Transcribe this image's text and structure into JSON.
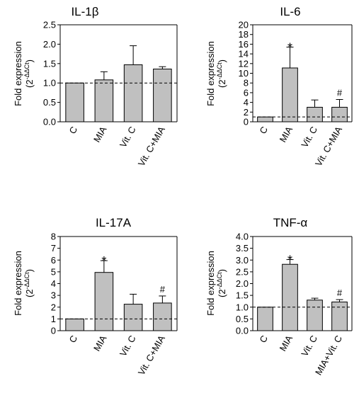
{
  "chart_data": [
    {
      "type": "bar",
      "title": "IL-1β",
      "ylabel": "Fold expression",
      "ylabel_sub": "(2",
      "ylabel_sup": "-ΔΔCt",
      "ylabel_close": ")",
      "categories": [
        "C",
        "MIA",
        "Vit. C",
        "Vit. C+MIA"
      ],
      "values": [
        1.0,
        1.08,
        1.47,
        1.36
      ],
      "errors": [
        0.0,
        0.21,
        0.49,
        0.06
      ],
      "annotations": [
        "",
        "",
        "",
        ""
      ],
      "ylim": [
        0,
        2.5
      ],
      "yticks": [
        0.0,
        0.5,
        1.0,
        1.5,
        2.0,
        2.5
      ],
      "ytick_labels": [
        "0.0",
        "0.5",
        "1.0",
        "1.5",
        "2.0",
        "2.5"
      ],
      "reference_line": 1.0,
      "bar_color": "#c0c0c0"
    },
    {
      "type": "bar",
      "title": "IL-6",
      "ylabel": "Fold expression",
      "ylabel_sub": "(2",
      "ylabel_sup": "-ΔΔCt",
      "ylabel_close": ")",
      "categories": [
        "C",
        "MIA",
        "Vit. C",
        "Vit. C+MIA"
      ],
      "values": [
        1.0,
        11.1,
        3.0,
        3.0
      ],
      "errors": [
        0.0,
        4.3,
        1.5,
        1.6
      ],
      "annotations": [
        "",
        "*",
        "",
        "#"
      ],
      "ylim": [
        0,
        20
      ],
      "yticks": [
        0,
        2,
        4,
        6,
        8,
        10,
        12,
        14,
        16,
        18,
        20
      ],
      "ytick_labels": [
        "0",
        "2",
        "4",
        "6",
        "8",
        "10",
        "12",
        "14",
        "16",
        "18",
        "20"
      ],
      "reference_line": 1.0,
      "bar_color": "#c0c0c0"
    },
    {
      "type": "bar",
      "title": "IL-17A",
      "ylabel": "Fold expression",
      "ylabel_sub": "(2",
      "ylabel_sup": "-ΔΔCt",
      "ylabel_close": ")",
      "categories": [
        "C",
        "MIA",
        "Vit. C",
        "Vit. C+MIA"
      ],
      "values": [
        1.0,
        4.95,
        2.25,
        2.35
      ],
      "errors": [
        0.0,
        1.0,
        0.85,
        0.6
      ],
      "annotations": [
        "",
        "*",
        "",
        "#"
      ],
      "ylim": [
        0,
        8
      ],
      "yticks": [
        0,
        1,
        2,
        3,
        4,
        5,
        6,
        7,
        8
      ],
      "ytick_labels": [
        "0",
        "1",
        "2",
        "3",
        "4",
        "5",
        "6",
        "7",
        "8"
      ],
      "reference_line": 1.0,
      "bar_color": "#c0c0c0"
    },
    {
      "type": "bar",
      "title": "TNF-α",
      "ylabel": "Fold expression",
      "ylabel_sub": "(2",
      "ylabel_sup": "-ΔΔCt",
      "ylabel_close": ")",
      "categories": [
        "C",
        "MIA",
        "Vit. C",
        "MIA+Vit. C"
      ],
      "values": [
        1.0,
        2.82,
        1.3,
        1.22
      ],
      "errors": [
        0.0,
        0.2,
        0.08,
        0.1
      ],
      "annotations": [
        "",
        "*",
        "",
        "#"
      ],
      "ylim": [
        0,
        4.0
      ],
      "yticks": [
        0.0,
        0.5,
        1.0,
        1.5,
        2.0,
        2.5,
        3.0,
        3.5,
        4.0
      ],
      "ytick_labels": [
        "0.0",
        "0.5",
        "1.0",
        "1.5",
        "2.0",
        "2.5",
        "3.0",
        "3.5",
        "4.0"
      ],
      "reference_line": 1.0,
      "bar_color": "#c0c0c0"
    }
  ]
}
